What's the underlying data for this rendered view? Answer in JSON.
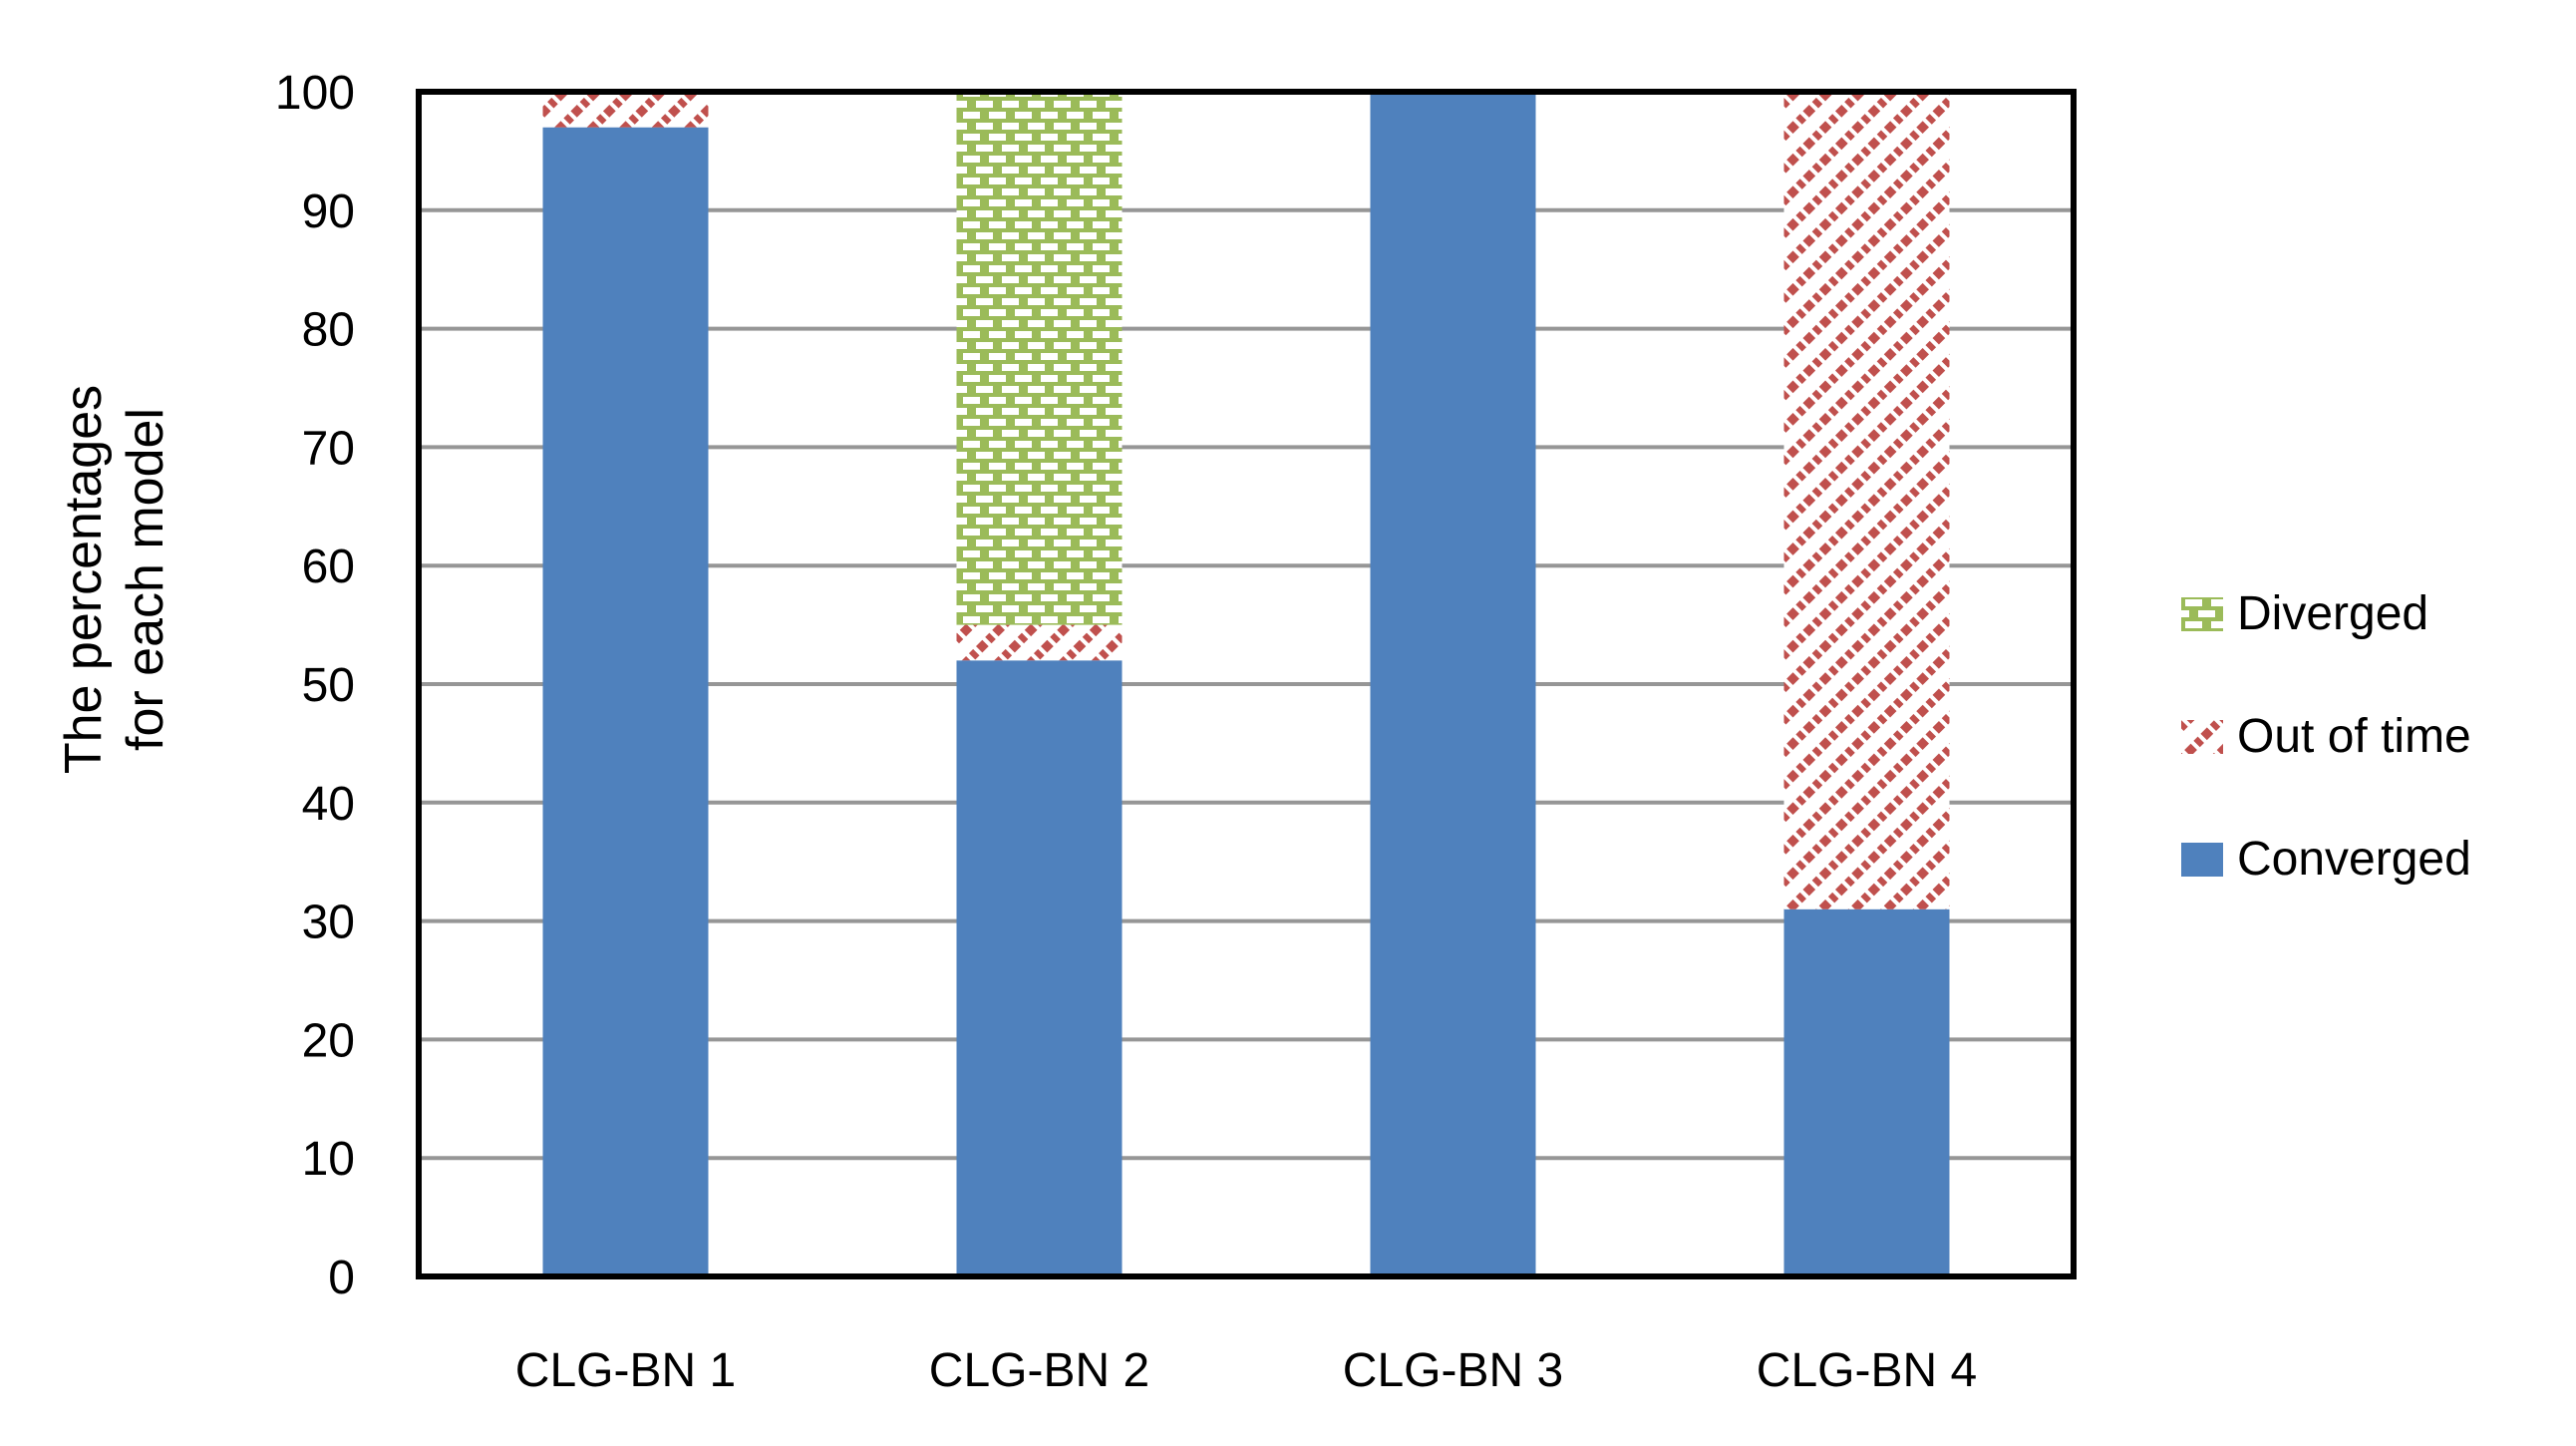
{
  "chart_data": {
    "type": "bar",
    "stacked": true,
    "title": "",
    "ylabel_lines": [
      "The percentages",
      "for each model"
    ],
    "categories": [
      "CLG-BN 1",
      "CLG-BN 2",
      "CLG-BN 3",
      "CLG-BN 4"
    ],
    "series": [
      {
        "name": "Diverged",
        "pattern": "green-dotted",
        "color": "#9BBB59",
        "values": [
          0,
          45,
          0,
          0
        ]
      },
      {
        "name": "Out of time",
        "pattern": "red-diagonal",
        "color": "#C0504D",
        "values": [
          3,
          3,
          0,
          69
        ]
      },
      {
        "name": "Converged",
        "pattern": "solid",
        "color": "#4F81BD",
        "values": [
          97,
          52,
          100,
          31
        ]
      }
    ],
    "stack_order_bottom_up": [
      "Converged",
      "Out of time",
      "Diverged"
    ],
    "ylim": [
      0,
      100
    ],
    "yticks": [
      0,
      10,
      20,
      30,
      40,
      50,
      60,
      70,
      80,
      90,
      100
    ],
    "grid": "horizontal",
    "gridline_color": "#969696",
    "axis_color": "#000000",
    "legend_position": "right",
    "legend_order": [
      "Diverged",
      "Out of time",
      "Converged"
    ]
  }
}
